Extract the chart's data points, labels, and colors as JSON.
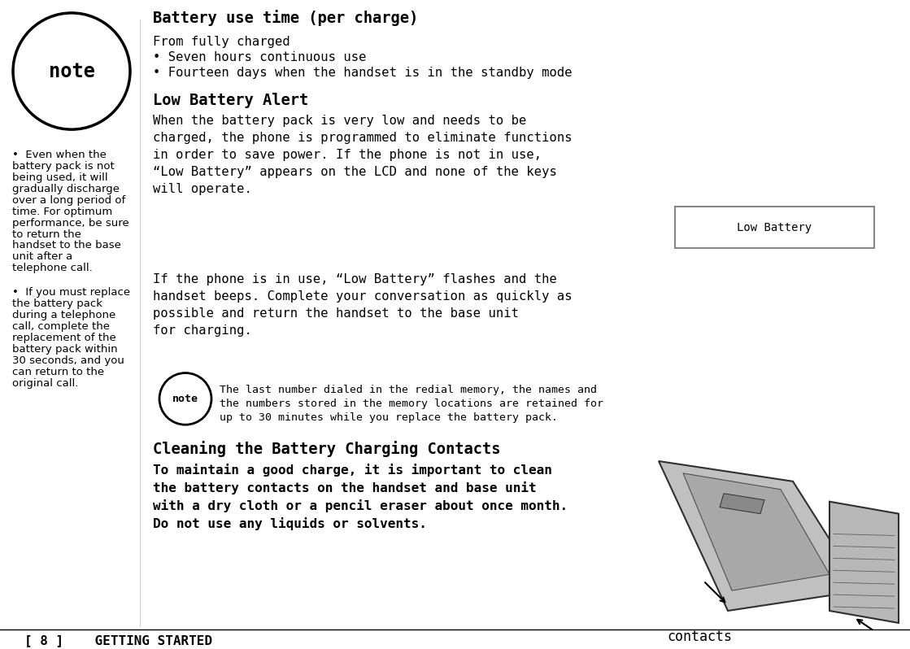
{
  "bg_color": "#ffffff",
  "text_color": "#000000",
  "footer_text": "[ 8 ]    GETTING STARTED",
  "title1": "Battery use time (per charge)",
  "sub1": "From fully charged",
  "bullet1": "• Seven hours continuous use",
  "bullet2": "• Fourteen days when the handset is in the standby mode",
  "title2": "Low Battery Alert",
  "para1a": "When the battery pack is very low and needs to be",
  "para1b": "charged, the phone is programmed to eliminate functions",
  "para1c": "in order to save power. If the phone is not in use,",
  "para1d": "“Low Battery” appears on the LCD and none of the keys",
  "para1e": "will operate.",
  "para2a": "If the phone is in use, “Low Battery” flashes and the",
  "para2b": "handset beeps. Complete your conversation as quickly as",
  "para2c": "possible and return the handset to the base unit",
  "para2d": "for charging.",
  "note_text1a": "The last number dialed in the redial memory, the names and",
  "note_text1b": "the numbers stored in the memory locations are retained for",
  "note_text1c": "up to 30 minutes while you replace the battery pack.",
  "title3": "Cleaning the Battery Charging Contacts",
  "para3a": "To maintain a good charge, it is important to clean",
  "para3b": "the battery contacts on the handset and base unit",
  "para3c": "with a dry cloth or a pencil eraser about once month.",
  "para3d": "Do not use any liquids or solvents.",
  "left_bullet1": [
    "•  Even when the",
    "battery pack is not",
    "being used, it will",
    "gradually discharge",
    "over a long period of",
    "time. For optimum",
    "performance, be sure",
    "to return the",
    "handset to the base",
    "unit after a",
    "telephone call."
  ],
  "left_bullet2": [
    "•  If you must replace",
    "the battery pack",
    "during a telephone",
    "call, complete the",
    "replacement of the",
    "battery pack within",
    "30 seconds, and you",
    "can return to the",
    "original call."
  ],
  "lcd_text": "Low Battery",
  "contacts_label": "contacts"
}
